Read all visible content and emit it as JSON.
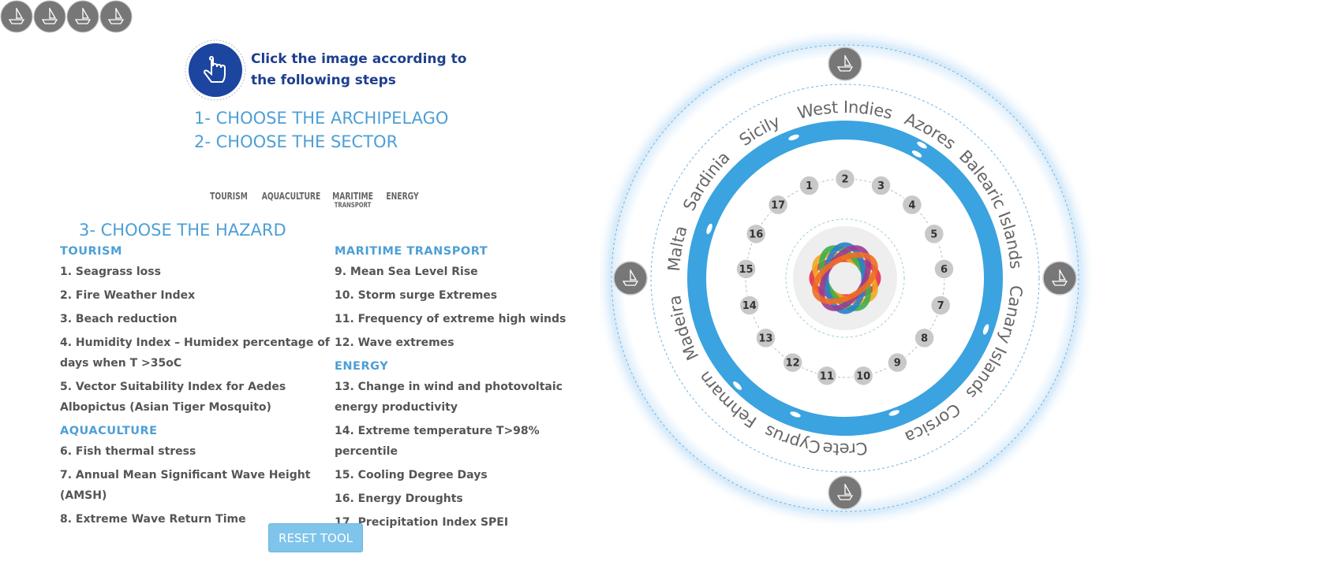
{
  "instruction": [
    "Click the image according to",
    "the following steps"
  ],
  "steps": [
    "1- CHOOSE THE ARCHIPELAGO",
    "2- CHOOSE THE SECTOR",
    "3- CHOOSE THE HAZARD"
  ],
  "sectors": [
    {
      "label": "TOURISM"
    },
    {
      "label": "AQUACULTURE"
    },
    {
      "label": "MARITIME",
      "sublabel": "TRANSPORT"
    },
    {
      "label": "ENERGY"
    }
  ],
  "hazard_groups": [
    {
      "title": "TOURISM",
      "items": [
        "1. Seagrass loss",
        "2. Fire Weather Index",
        "3. Beach reduction",
        "4. Humidity Index – Humidex percentage of days when T >35oC",
        "5. Vector Suitability Index for Aedes Albopictus (Asian Tiger Mosquito)"
      ]
    },
    {
      "title": "AQUACULTURE",
      "items": [
        "6. Fish thermal stress",
        "7. Annual Mean Significant Wave Height (AMSH)",
        "8. Extreme Wave Return Time"
      ]
    },
    {
      "title": "MARITIME TRANSPORT",
      "items": [
        "9. Mean Sea Level Rise",
        "10. Storm surge Extremes",
        "11. Frequency of extreme high winds",
        "12. Wave extremes"
      ]
    },
    {
      "title": "ENERGY",
      "items": [
        "13. Change in wind and photovoltaic energy productivity",
        "14. Extreme temperature T>98% percentile",
        "15. Cooling Degree Days",
        "16. Energy Droughts",
        "17. Precipitation Index SPEI"
      ]
    }
  ],
  "reset_button": "RESET TOOL",
  "wheel": {
    "archipelagos": [
      "West Indies",
      "Azores",
      "Balearic Islands",
      "Canary Islands",
      "Corsica",
      "Crete",
      "Cyprus",
      "Fehmarn",
      "Madeira",
      "Malta",
      "Sardinia",
      "Sicily"
    ],
    "numbers": [
      "1",
      "2",
      "3",
      "4",
      "5",
      "6",
      "7",
      "8",
      "9",
      "10",
      "11",
      "12",
      "13",
      "14",
      "15",
      "16",
      "17"
    ]
  }
}
